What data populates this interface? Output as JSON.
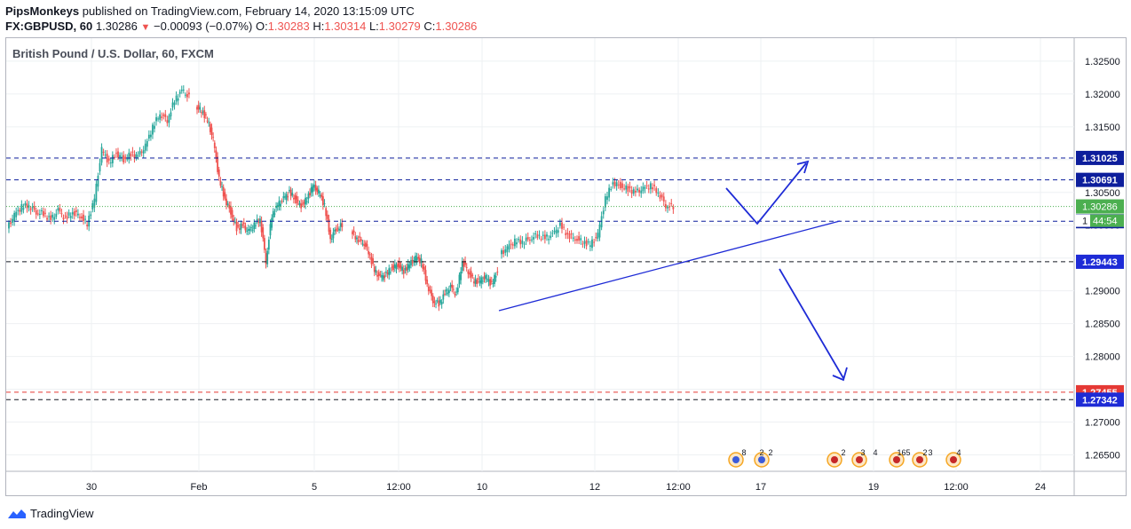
{
  "header": {
    "author": "PipsMonkeys",
    "published_text": "published on TradingView.com, February 14, 2020 13:15:09 UTC",
    "symbol": "FX:GBPUSD, 60",
    "last": "1.30286",
    "arrow": "▼",
    "change": "−0.00093 (−0.07%)",
    "o_label": "O:",
    "o_value": "1.30283",
    "h_label": "H:",
    "h_value": "1.30314",
    "l_label": "L:",
    "l_value": "1.30279",
    "c_label": "C:",
    "c_value": "1.30286"
  },
  "legend_title": "British Pound / U.S. Dollar, 60, FXCM",
  "footer_brand": "TradingView",
  "colors": {
    "up": "#26a69a",
    "down": "#ef5350",
    "level": "#0d1e9c",
    "red_level": "#e53935",
    "black_level": "#131722",
    "annot": "#1e2bd6",
    "grid": "#eef0f3",
    "label_bg": "#1e2bd6",
    "price_bg": "#4caf50"
  },
  "chart_data": {
    "type": "candlestick",
    "ylim": [
      1.2625,
      1.3285
    ],
    "y_ticks": [
      "1.32500",
      "1.32000",
      "1.31500",
      "1.31000",
      "1.30500",
      "1.30000",
      "1.29500",
      "1.29000",
      "1.28500",
      "1.28000",
      "1.27500",
      "1.27000",
      "1.26500"
    ],
    "x_ticks": [
      "30",
      "Feb",
      "5",
      "12:00",
      "10",
      "12",
      "12:00",
      "17",
      "19",
      "12:00",
      "24"
    ],
    "price_path": [
      [
        1.2995,
        1.3015,
        1.3028,
        1.303,
        1.302,
        1.3018,
        1.3008,
        1.3022,
        1.301,
        1.302,
        1.3015,
        1.3002,
        1.304,
        1.3115,
        1.3095,
        1.311,
        1.31,
        1.3108,
        1.3105,
        1.312,
        1.315,
        1.317,
        1.316,
        1.319,
        1.3205,
        1.3195
      ],
      [
        1.318,
        1.3175,
        1.316,
        1.313,
        1.307,
        1.304,
        1.302,
        1.2995,
        1.3,
        1.299,
        1.3,
        1.301,
        1.2945,
        1.3015,
        1.303,
        1.304,
        1.305,
        1.304,
        1.303,
        1.304,
        1.306,
        1.305,
        1.303,
        1.298,
        1.2995,
        1.3
      ],
      [
        1.299,
        1.298,
        1.2975,
        1.296,
        1.293,
        1.292,
        1.2925,
        1.2935,
        1.294,
        1.293,
        1.294,
        1.295,
        1.2945,
        1.291,
        1.2885,
        1.288,
        1.2895,
        1.2905,
        1.2895,
        1.2945,
        1.293,
        1.2915,
        1.2915,
        1.292,
        1.291,
        1.293
      ],
      [
        1.2955,
        1.2965,
        1.2975,
        1.2975,
        1.298,
        1.2985,
        1.298,
        1.2985,
        1.3,
        1.2985,
        1.298,
        1.2975,
        1.297,
        1.2985,
        1.304,
        1.3065,
        1.306,
        1.3055,
        1.305,
        1.3055,
        1.306,
        1.305,
        1.303,
        1.3028
      ]
    ],
    "levels": [
      {
        "value": "1.31025",
        "style": "dashed-blue"
      },
      {
        "value": "1.30691",
        "style": "dashed-blue"
      },
      {
        "value": "1.30061",
        "style": "dashed-blue"
      },
      {
        "value": "1.29443",
        "style": "dashed-black"
      },
      {
        "value": "1.27455",
        "style": "dashed-red"
      },
      {
        "value": "1.27342",
        "style": "dashed-black"
      }
    ],
    "current_price": "1.30286",
    "countdown": "44:54",
    "countdown_prefix": "1"
  },
  "events": [
    {
      "count": "8"
    },
    {
      "count": "2"
    },
    {
      "count": "2"
    },
    {
      "count": "2"
    },
    {
      "count": "3"
    },
    {
      "count": "4"
    },
    {
      "count": "165"
    },
    {
      "count": "2"
    },
    {
      "count": "3"
    },
    {
      "count": "4"
    }
  ]
}
